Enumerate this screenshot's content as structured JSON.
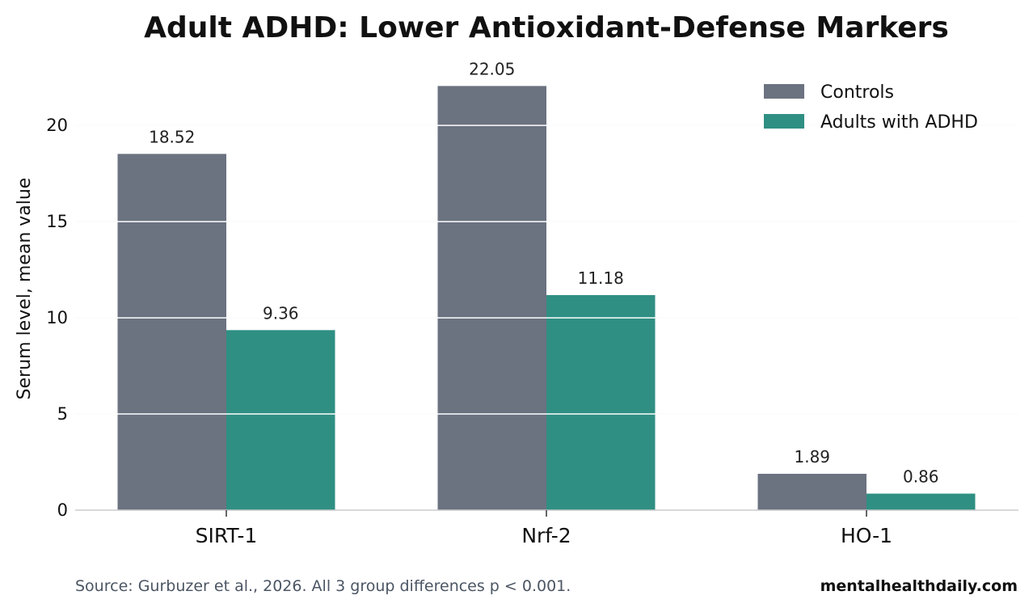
{
  "chart_data": {
    "type": "bar",
    "title": "Adult ADHD: Lower Antioxidant-Defense Markers",
    "xlabel": "",
    "ylabel": "Serum level, mean value",
    "categories": [
      "SIRT-1",
      "Nrf-2",
      "HO-1"
    ],
    "series": [
      {
        "name": "Controls",
        "values": [
          18.52,
          22.05,
          1.89
        ],
        "labels": [
          "18.52",
          "22.05",
          "1.89"
        ],
        "color": "#6b7280"
      },
      {
        "name": "Adults with ADHD",
        "values": [
          9.36,
          11.18,
          0.86
        ],
        "labels": [
          "9.36",
          "11.18",
          "0.86"
        ],
        "color": "#2f8f83"
      }
    ],
    "ylim": [
      0,
      23.2
    ],
    "yticks": [
      0,
      5,
      10,
      15,
      20
    ],
    "grid": true,
    "legend_position": "top-right"
  },
  "footer": {
    "source": "Source: Gurbuzer et al., 2026. All 3 group differences p < 0.001.",
    "brand": "mentalhealthdaily.com"
  }
}
